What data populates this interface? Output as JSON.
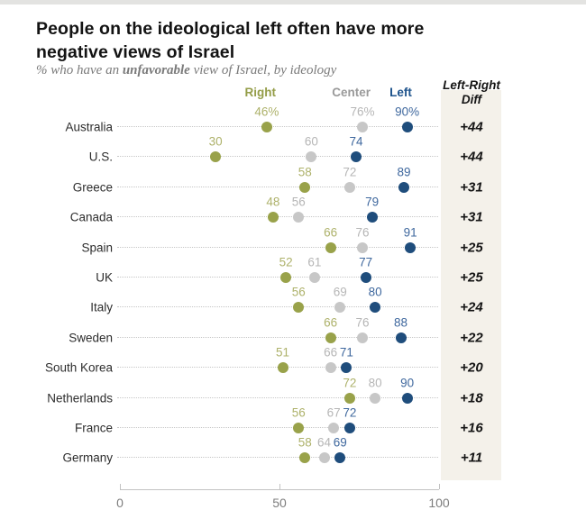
{
  "page": {
    "title_line1": "People on the ideological left often have more",
    "title_line2": "negative views of Israel",
    "subtitle_prefix": "% who have an ",
    "subtitle_bold": "unfavorable",
    "subtitle_suffix": " view of Israel, by ideology"
  },
  "chart_data": {
    "type": "scatter",
    "title": "People on the ideological left often have more negative views of Israel",
    "subtitle": "% who have an unfavorable view of Israel, by ideology",
    "series_labels": {
      "right": "Right",
      "center": "Center",
      "left": "Left"
    },
    "diff_header_line1": "Left-Right",
    "diff_header_line2": "Diff",
    "xlim": [
      0,
      100
    ],
    "x_ticks": [
      0,
      50,
      100
    ],
    "rows": [
      {
        "country": "Australia",
        "right": 46,
        "center": 76,
        "left": 90,
        "diff": "+44",
        "value_suffix": "%"
      },
      {
        "country": "U.S.",
        "right": 30,
        "center": 60,
        "left": 74,
        "diff": "+44"
      },
      {
        "country": "Greece",
        "right": 58,
        "center": 72,
        "left": 89,
        "diff": "+31"
      },
      {
        "country": "Canada",
        "right": 48,
        "center": 56,
        "left": 79,
        "diff": "+31"
      },
      {
        "country": "Spain",
        "right": 66,
        "center": 76,
        "left": 91,
        "diff": "+25"
      },
      {
        "country": "UK",
        "right": 52,
        "center": 61,
        "left": 77,
        "diff": "+25"
      },
      {
        "country": "Italy",
        "right": 56,
        "center": 69,
        "left": 80,
        "diff": "+24"
      },
      {
        "country": "Sweden",
        "right": 66,
        "center": 76,
        "left": 88,
        "diff": "+22"
      },
      {
        "country": "South Korea",
        "right": 51,
        "center": 66,
        "left": 71,
        "diff": "+20"
      },
      {
        "country": "Netherlands",
        "right": 72,
        "center": 80,
        "left": 90,
        "diff": "+18"
      },
      {
        "country": "France",
        "right": 56,
        "center": 67,
        "left": 72,
        "diff": "+16"
      },
      {
        "country": "Germany",
        "right": 58,
        "center": 64,
        "left": 69,
        "diff": "+11"
      }
    ],
    "colors": {
      "right_dot": "#99a24a",
      "right_text": "#aeb26b",
      "right_header": "#949d48",
      "center_dot": "#c7c7c7",
      "center_text": "#b6b6b6",
      "center_header": "#9a9a9a",
      "left_dot": "#1f4d7c",
      "left_text": "#3f689e",
      "left_header": "#1e538c",
      "diff_bg": "#f4f1ea",
      "diff_text": "#151515"
    }
  }
}
